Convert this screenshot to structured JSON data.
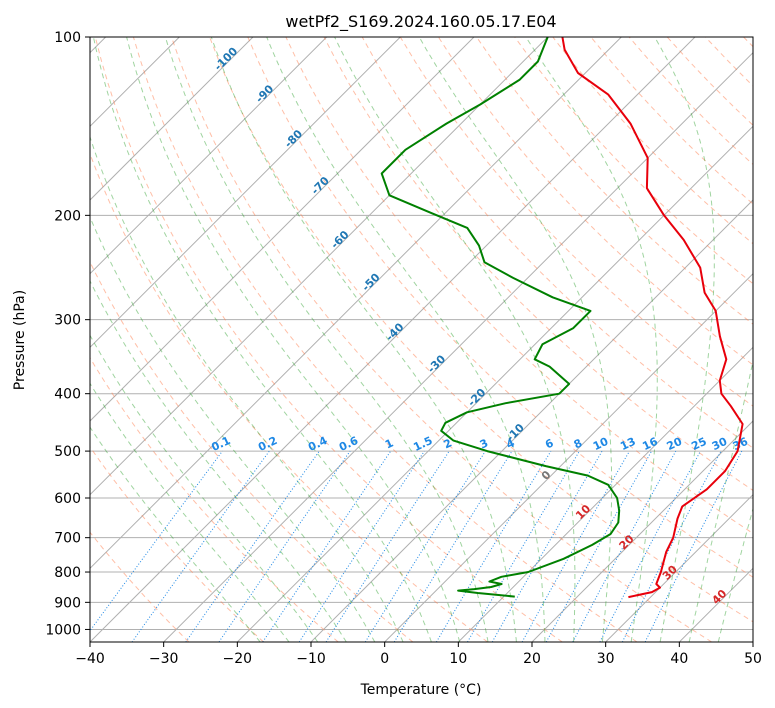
{
  "chart_data": {
    "type": "line",
    "title": "wetPf2_S169.2024.160.05.17.E04",
    "xlabel": "Temperature (°C)",
    "ylabel": "Pressure (hPa)",
    "xlim": [
      -40,
      50
    ],
    "ylim": [
      1050,
      100
    ],
    "y_scale": "log",
    "grid": true,
    "x_ticks": [
      -40,
      -30,
      -20,
      -10,
      0,
      10,
      20,
      30,
      40,
      50
    ],
    "y_ticks": [
      100,
      200,
      300,
      400,
      500,
      600,
      700,
      800,
      900,
      1000
    ],
    "skew_reference": "isotherm labels printed along the diagram",
    "isotherm_labels": [
      "-100",
      "-90",
      "-80",
      "-70",
      "-60",
      "-50",
      "-40",
      "-30",
      "-20",
      "-10",
      "0",
      "10",
      "20",
      "30",
      "40"
    ],
    "mixing_ratio_labels": [
      "0.1",
      "0.2",
      "0.4",
      "0.6",
      "1",
      "1.5",
      "2",
      "3",
      "4",
      "6",
      "8",
      "10",
      "13",
      "16",
      "20",
      "25",
      "30",
      "36"
    ],
    "colors": {
      "temperature": "#e8000b",
      "dewpoint": "#008000",
      "isotherm_label_cold": "#1f77b4",
      "isotherm_label_warm": "#d62728",
      "mixing_ratio": "#1e88e5",
      "dry_adiabat": "#ff7f50",
      "moist_adiabat": "#2ca02c",
      "grid": "#b0b0b0"
    },
    "series": [
      {
        "type": "line",
        "points": [
          {
            "p": 882,
            "t": 27
          },
          {
            "p": 865,
            "t": 29.5
          },
          {
            "p": 850,
            "t": 30
          },
          {
            "p": 838,
            "t": 29
          },
          {
            "p": 800,
            "t": 28
          },
          {
            "p": 740,
            "t": 26
          },
          {
            "p": 700,
            "t": 25
          },
          {
            "p": 650,
            "t": 23
          },
          {
            "p": 620,
            "t": 22
          },
          {
            "p": 580,
            "t": 23
          },
          {
            "p": 540,
            "t": 23
          },
          {
            "p": 500,
            "t": 22
          },
          {
            "p": 450,
            "t": 19
          },
          {
            "p": 420,
            "t": 15
          },
          {
            "p": 400,
            "t": 12
          },
          {
            "p": 380,
            "t": 10
          },
          {
            "p": 350,
            "t": 8
          },
          {
            "p": 320,
            "t": 4
          },
          {
            "p": 290,
            "t": 0
          },
          {
            "p": 270,
            "t": -4
          },
          {
            "p": 245,
            "t": -8
          },
          {
            "p": 220,
            "t": -14
          },
          {
            "p": 200,
            "t": -20
          },
          {
            "p": 180,
            "t": -26
          },
          {
            "p": 160,
            "t": -30
          },
          {
            "p": 140,
            "t": -37
          },
          {
            "p": 125,
            "t": -44
          },
          {
            "p": 115,
            "t": -51
          },
          {
            "p": 105,
            "t": -56
          },
          {
            "p": 100,
            "t": -58
          }
        ]
      },
      {
        "type": "line",
        "points": [
          {
            "p": 880,
            "t": 11.5
          },
          {
            "p": 868,
            "t": 6
          },
          {
            "p": 860,
            "t": 3
          },
          {
            "p": 855,
            "t": 5
          },
          {
            "p": 848,
            "t": 7
          },
          {
            "p": 838,
            "t": 8
          },
          {
            "p": 830,
            "t": 6
          },
          {
            "p": 815,
            "t": 7
          },
          {
            "p": 800,
            "t": 10
          },
          {
            "p": 760,
            "t": 13
          },
          {
            "p": 720,
            "t": 15
          },
          {
            "p": 690,
            "t": 16
          },
          {
            "p": 660,
            "t": 15.5
          },
          {
            "p": 630,
            "t": 14
          },
          {
            "p": 600,
            "t": 12
          },
          {
            "p": 570,
            "t": 9
          },
          {
            "p": 550,
            "t": 5
          },
          {
            "p": 530,
            "t": -2
          },
          {
            "p": 500,
            "t": -12
          },
          {
            "p": 480,
            "t": -18
          },
          {
            "p": 462,
            "t": -21
          },
          {
            "p": 448,
            "t": -21.5
          },
          {
            "p": 430,
            "t": -20
          },
          {
            "p": 415,
            "t": -16
          },
          {
            "p": 400,
            "t": -10
          },
          {
            "p": 385,
            "t": -10
          },
          {
            "p": 360,
            "t": -15
          },
          {
            "p": 350,
            "t": -18
          },
          {
            "p": 330,
            "t": -19
          },
          {
            "p": 310,
            "t": -17
          },
          {
            "p": 290,
            "t": -17
          },
          {
            "p": 275,
            "t": -24
          },
          {
            "p": 255,
            "t": -32
          },
          {
            "p": 240,
            "t": -38
          },
          {
            "p": 225,
            "t": -41
          },
          {
            "p": 210,
            "t": -45
          },
          {
            "p": 198,
            "t": -52
          },
          {
            "p": 185,
            "t": -60
          },
          {
            "p": 170,
            "t": -64
          },
          {
            "p": 155,
            "t": -64
          },
          {
            "p": 140,
            "t": -62
          },
          {
            "p": 130,
            "t": -60
          },
          {
            "p": 118,
            "t": -58
          },
          {
            "p": 110,
            "t": -58
          },
          {
            "p": 100,
            "t": -60
          }
        ]
      }
    ]
  }
}
